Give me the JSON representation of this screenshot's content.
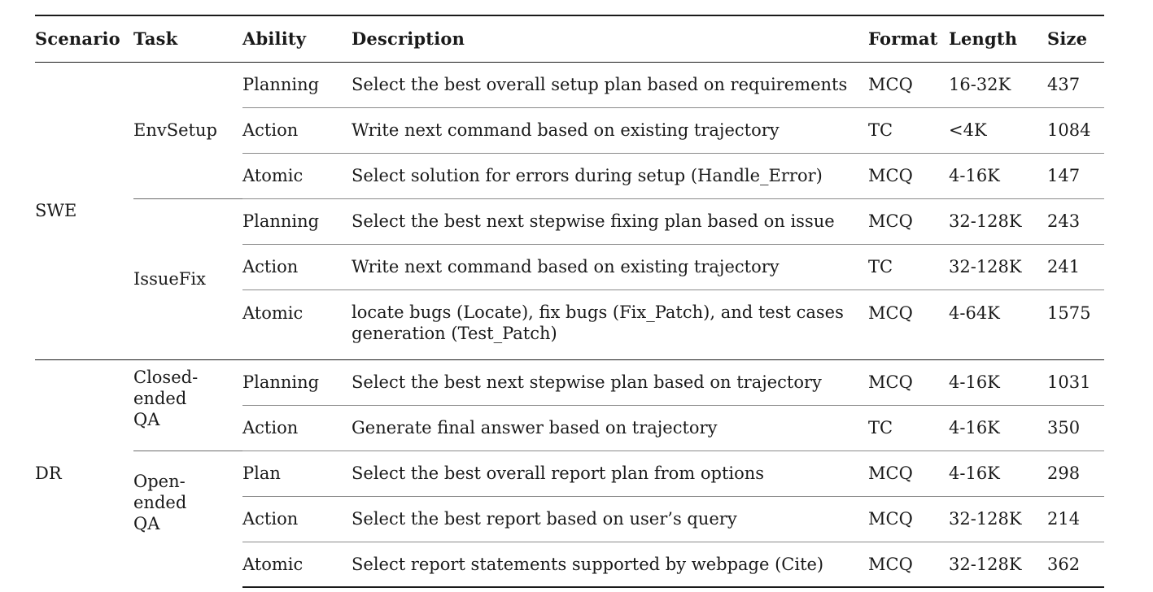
{
  "columns": [
    "Scenario",
    "Task",
    "Ability",
    "Description",
    "Format",
    "Length",
    "Size"
  ],
  "groups": [
    {
      "scenario": "SWE",
      "tasks": [
        {
          "task": "EnvSetup",
          "rows": [
            {
              "ability": "Planning",
              "description": "Select the best overall setup plan based on requirements",
              "format": "MCQ",
              "length": "16-32K",
              "size": "437"
            },
            {
              "ability": "Action",
              "description": "Write next command based on existing trajectory",
              "format": "TC",
              "length": "<4K",
              "size": "1084"
            },
            {
              "ability": "Atomic",
              "description": "Select solution for errors during setup (Handle_Error)",
              "format": "MCQ",
              "length": "4-16K",
              "size": "147"
            }
          ]
        },
        {
          "task": "IssueFix",
          "rows": [
            {
              "ability": "Planning",
              "description": "Select the best next stepwise fixing plan based on issue",
              "format": "MCQ",
              "length": "32-128K",
              "size": "243"
            },
            {
              "ability": "Action",
              "description": "Write next command based on existing trajectory",
              "format": "TC",
              "length": "32-128K",
              "size": "241"
            },
            {
              "ability": "Atomic",
              "description": "locate bugs (Locate), fix bugs (Fix_Patch), and test cases generation (Test_Patch)",
              "format": "MCQ",
              "length": "4-64K",
              "size": "1575"
            }
          ]
        }
      ]
    },
    {
      "scenario": "DR",
      "tasks": [
        {
          "task_lines": [
            "Closed-",
            "ended",
            "QA"
          ],
          "rows": [
            {
              "ability": "Planning",
              "description": "Select the best next stepwise plan based on trajectory",
              "format": "MCQ",
              "length": "4-16K",
              "size": "1031"
            },
            {
              "ability": "Action",
              "description": "Generate final answer based on trajectory",
              "format": "TC",
              "length": "4-16K",
              "size": "350"
            }
          ]
        },
        {
          "task_lines": [
            "Open-",
            "ended",
            "QA"
          ],
          "rows": [
            {
              "ability": "Plan",
              "description": "Select the best overall report plan from options",
              "format": "MCQ",
              "length": "4-16K",
              "size": "298"
            },
            {
              "ability": "Action",
              "description": "Select the best report based on user’s query",
              "format": "MCQ",
              "length": "32-128K",
              "size": "214"
            },
            {
              "ability": "Atomic",
              "description": "Select report statements supported by webpage (Cite)",
              "format": "MCQ",
              "length": "32-128K",
              "size": "362"
            }
          ]
        }
      ]
    }
  ]
}
